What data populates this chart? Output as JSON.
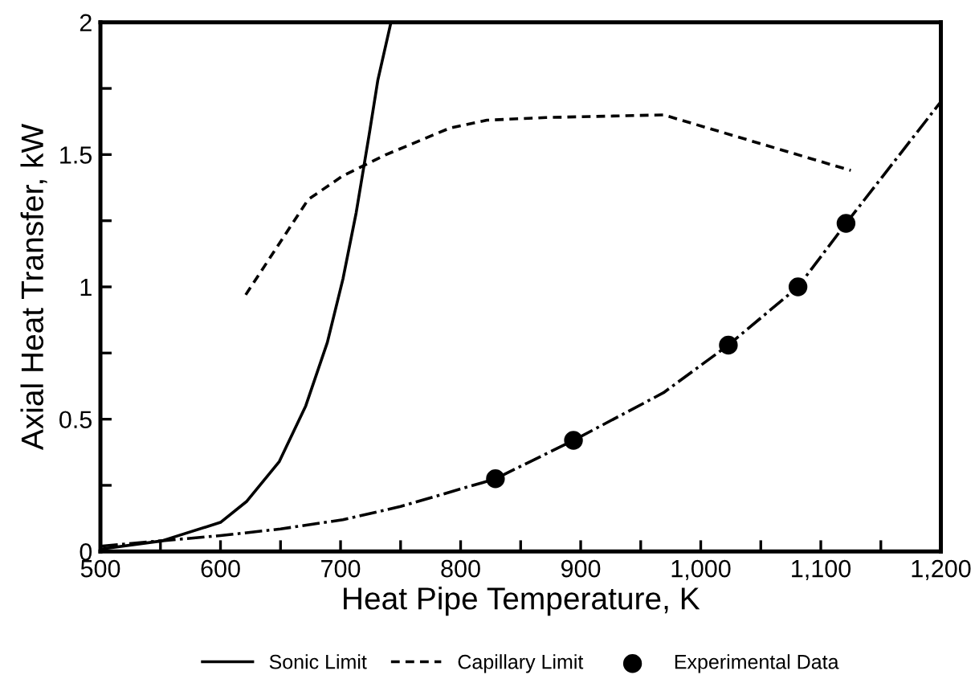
{
  "chart_data": {
    "type": "line",
    "xlabel": "Heat Pipe Temperature, K",
    "ylabel": "Axial Heat Transfer, kW",
    "xlim": [
      500,
      1200
    ],
    "ylim": [
      0,
      2
    ],
    "xticks": [
      500,
      {
        "value": 550,
        "label": null
      },
      600,
      {
        "value": 650,
        "label": null
      },
      700,
      {
        "value": 750,
        "label": null
      },
      800,
      {
        "value": 850,
        "label": null
      },
      900,
      {
        "value": 950,
        "label": null
      },
      {
        "value": 1000,
        "label": "1,000"
      },
      {
        "value": 1050,
        "label": null
      },
      {
        "value": 1100,
        "label": "1,100"
      },
      {
        "value": 1150,
        "label": null
      },
      {
        "value": 1200,
        "label": "1,200"
      }
    ],
    "yticks": [
      0,
      {
        "value": 0.25,
        "label": null
      },
      0.5,
      {
        "value": 0.75,
        "label": null
      },
      1,
      {
        "value": 1.25,
        "label": null
      },
      1.5,
      {
        "value": 1.75,
        "label": null
      },
      2
    ],
    "grid": false,
    "legend": "bottom",
    "series": [
      {
        "name": "Sonic Limit",
        "type": "line",
        "color": "#000000",
        "line_style": "solid",
        "marker": "none",
        "x": [
          502,
          551,
          600,
          622,
          649,
          671,
          689,
          702,
          713,
          724,
          731,
          742
        ],
        "values": [
          0.01,
          0.04,
          0.11,
          0.19,
          0.34,
          0.55,
          0.79,
          1.03,
          1.28,
          1.58,
          1.78,
          2.0
        ]
      },
      {
        "name": "Capillary Limit",
        "type": "line",
        "color": "#000000",
        "line_style": "dashed",
        "marker": "none",
        "x": [
          621,
          673,
          702,
          738,
          791,
          822,
          871,
          969,
          1125
        ],
        "values": [
          0.97,
          1.33,
          1.42,
          1.5,
          1.6,
          1.63,
          1.64,
          1.65,
          1.44
        ]
      },
      {
        "name": "Experimental Data",
        "type": "scatter",
        "color": "#000000",
        "marker": "circle",
        "x": [
          829,
          894,
          1023,
          1081,
          1121
        ],
        "values": [
          0.275,
          0.42,
          0.78,
          1.0,
          1.24
        ]
      },
      {
        "color": "#000000",
        "line_style": "dashdot",
        "marker": "none",
        "x": [
          500,
          550,
          600,
          650,
          702,
          750,
          818,
          829,
          894,
          969,
          1023,
          1081,
          1121,
          1200
        ],
        "values": [
          0.02,
          0.04,
          0.06,
          0.085,
          0.12,
          0.17,
          0.26,
          0.275,
          0.42,
          0.6,
          0.78,
          1.0,
          1.24,
          1.7
        ]
      }
    ]
  }
}
